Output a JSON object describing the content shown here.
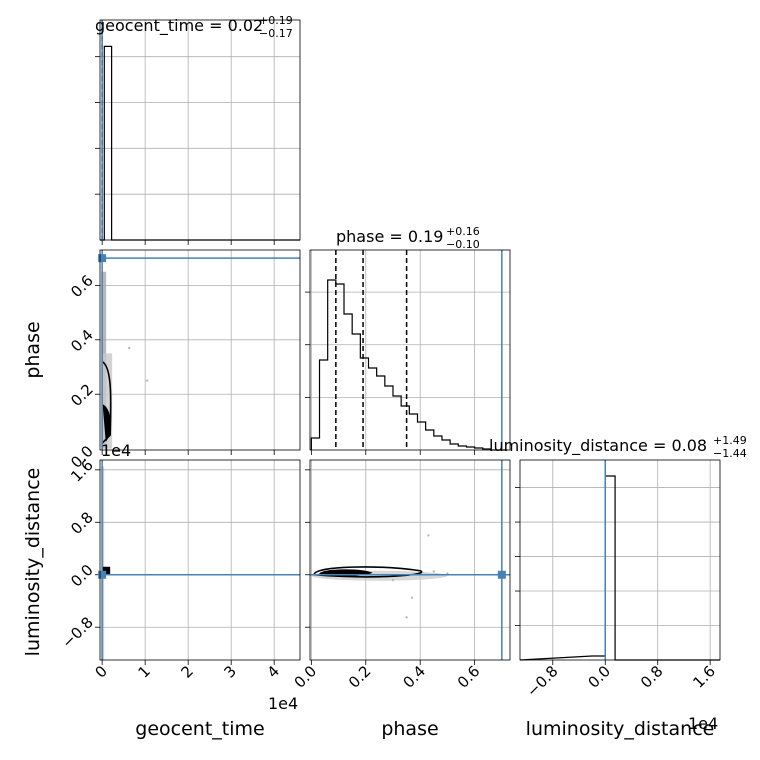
{
  "chart_data": {
    "type": "corner",
    "parameters": [
      {
        "name": "geocent_time",
        "label": "geocent_time",
        "title_base": "geocent_time = 0.02",
        "title_plus": "+0.19",
        "title_minus": "−0.17",
        "range": [
          -0.05,
          4.6
        ],
        "ticks": [
          0,
          1,
          2,
          3,
          4
        ],
        "tick_labels": [
          "0",
          "1",
          "2",
          "3",
          "4"
        ],
        "offset_label": "1e4",
        "injection": 0.0,
        "hist": {
          "bins": [
            [
              -0.05,
              0.05,
              0.0
            ],
            [
              0.05,
              0.22,
              0.88
            ],
            [
              0.22,
              4.6,
              0.0
            ]
          ]
        },
        "quantiles": [
          0.0,
          0.0,
          0.0
        ]
      },
      {
        "name": "phase",
        "label": "phase",
        "title_base": "phase = 0.19",
        "title_plus": "+0.16",
        "title_minus": "−0.10",
        "range": [
          -0.005,
          0.73
        ],
        "ticks": [
          0.0,
          0.2,
          0.4,
          0.6
        ],
        "tick_labels": [
          "0.0",
          "0.2",
          "0.4",
          "0.6"
        ],
        "yticks": [
          0.2,
          0.4,
          0.6
        ],
        "ytick_labels": [
          "0.2",
          "0.4",
          "0.6"
        ],
        "injection": 0.7,
        "hist_edges": [
          0.0,
          0.03,
          0.06,
          0.09,
          0.12,
          0.15,
          0.18,
          0.21,
          0.24,
          0.27,
          0.3,
          0.33,
          0.36,
          0.39,
          0.42,
          0.45,
          0.48,
          0.51,
          0.54,
          0.57,
          0.6,
          0.63,
          0.66,
          0.69,
          0.72
        ],
        "hist_counts": [
          0.06,
          0.45,
          0.85,
          0.83,
          0.68,
          0.58,
          0.46,
          0.41,
          0.37,
          0.32,
          0.27,
          0.22,
          0.18,
          0.14,
          0.1,
          0.07,
          0.05,
          0.03,
          0.02,
          0.015,
          0.01,
          0.005,
          0.0,
          0.0
        ],
        "quantiles": [
          0.09,
          0.19,
          0.35
        ]
      },
      {
        "name": "luminosity_distance",
        "label": "luminosity_distance",
        "title_base": "luminosity_distance = 0.08",
        "title_plus": "+1.49",
        "title_minus": "−1.44",
        "range": [
          -1.3,
          1.75
        ],
        "ticks": [
          -0.8,
          0.0,
          0.8,
          1.6
        ],
        "tick_labels": [
          "−0.8",
          "0.0",
          "0.8",
          "1.6"
        ],
        "offset_label": "1e4",
        "injection": 0.0,
        "hist": {
          "bins": [
            [
              -0.2,
              0.0,
              0.02
            ],
            [
              0.0,
              0.15,
              0.92
            ]
          ]
        },
        "quantiles": [
          0.0,
          0.0,
          0.0
        ]
      }
    ],
    "injection_color": "#4682b4",
    "hist_color": "#000000",
    "grid": true
  }
}
